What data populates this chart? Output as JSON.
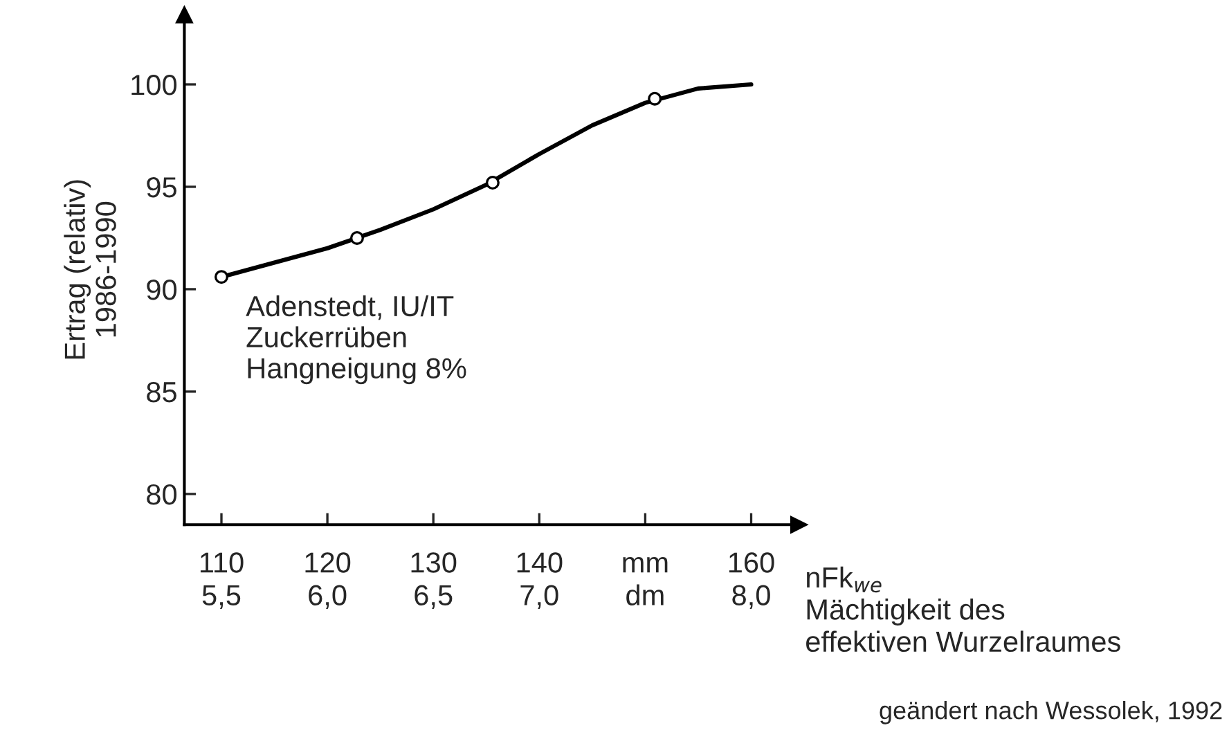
{
  "chart_data": {
    "type": "line",
    "xlabel": "nFk$_{we}$",
    "ylabel": "Ertrag (relativ)\n1986-1990",
    "series": [
      {
        "color": "#000000",
        "marker": "none",
        "x": [
          110,
          115,
          120,
          125,
          130,
          135,
          140,
          145,
          150,
          155,
          160
        ],
        "values": [
          90.6,
          91.3,
          92.0,
          92.9,
          93.9,
          95.1,
          96.6,
          98.0,
          99.1,
          99.8,
          100.0
        ]
      },
      {
        "type": "scatter",
        "color": "#000000",
        "marker": "circle",
        "x": [
          110,
          122.8,
          135.6,
          150.9
        ],
        "values": [
          90.6,
          92.5,
          95.2,
          99.3
        ]
      }
    ],
    "xlim": [
      106.5,
      164.5
    ],
    "ylim": [
      78.5,
      103.4
    ],
    "xticks": [
      110,
      120,
      130,
      140,
      {
        "value": 150,
        "label": "mm"
      },
      160
    ],
    "x2label": "Mächtigkeit des\neffektiven Wurzelraumes",
    "x2lim": [
      5.325,
      8.225
    ],
    "x2ticks": [
      {
        "value": 5.5,
        "label": "5,5"
      },
      {
        "value": 6.0,
        "label": "6,0"
      },
      {
        "value": 6.5,
        "label": "6,5"
      },
      {
        "value": 7.0,
        "label": "7,0"
      },
      {
        "value": 7.5,
        "label": "dm"
      },
      {
        "value": 8.0,
        "label": "8,0"
      }
    ],
    "yticks": [
      80,
      85,
      90,
      95,
      100
    ],
    "grid": false,
    "legend": false,
    "annotations": [
      "Adenstedt, IU/IT\nZuckerrüben\nHangneigung 8%",
      "geändert nach Wessolek, 1992"
    ]
  }
}
